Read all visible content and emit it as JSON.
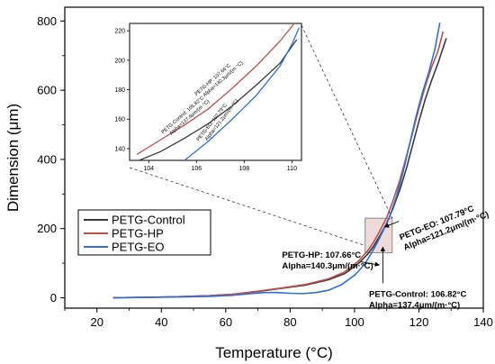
{
  "chart_data": [
    {
      "type": "line",
      "title": "",
      "xlabel": "Temperature (°C)",
      "ylabel": "Dimension (μm)",
      "xlim": [
        10,
        140
      ],
      "ylim": [
        -30,
        840
      ],
      "xticks": [
        20,
        40,
        60,
        80,
        100,
        120,
        140
      ],
      "yticks": [
        0,
        200,
        400,
        600,
        800
      ],
      "grid": false,
      "legend_position": "center-left",
      "series": [
        {
          "name": "PETG-Control",
          "color": "#3a3a3a",
          "points": [
            [
              25,
              0
            ],
            [
              35,
              1
            ],
            [
              45,
              3
            ],
            [
              55,
              6
            ],
            [
              62,
              10
            ],
            [
              70,
              18
            ],
            [
              78,
              28
            ],
            [
              85,
              37
            ],
            [
              92,
              52
            ],
            [
              97,
              70
            ],
            [
              101,
              97
            ],
            [
              104,
              125
            ],
            [
              106,
              150
            ],
            [
              108,
              182
            ],
            [
              110,
              215
            ],
            [
              112,
              260
            ],
            [
              114,
              310
            ],
            [
              116,
              370
            ],
            [
              118,
              440
            ],
            [
              120,
              510
            ],
            [
              122,
              575
            ],
            [
              124,
              630
            ],
            [
              126,
              680
            ],
            [
              128.5,
              750
            ]
          ]
        },
        {
          "name": "PETG-HP",
          "color": "#c0504d",
          "points": [
            [
              25,
              0
            ],
            [
              35,
              1
            ],
            [
              45,
              3
            ],
            [
              55,
              6
            ],
            [
              62,
              10
            ],
            [
              70,
              19
            ],
            [
              78,
              29
            ],
            [
              85,
              39
            ],
            [
              92,
              55
            ],
            [
              97,
              75
            ],
            [
              101,
              104
            ],
            [
              104,
              135
            ],
            [
              106,
              162
            ],
            [
              108,
              196
            ],
            [
              110,
              232
            ],
            [
              112,
              282
            ],
            [
              114,
              338
            ],
            [
              116,
              405
            ],
            [
              118,
              475
            ],
            [
              120,
              548
            ],
            [
              122,
              612
            ],
            [
              124,
              668
            ],
            [
              126,
              715
            ],
            [
              127.5,
              770
            ]
          ]
        },
        {
          "name": "PETG-EO",
          "color": "#2f6fd6",
          "points": [
            [
              25,
              0
            ],
            [
              35,
              1
            ],
            [
              45,
              2
            ],
            [
              55,
              4
            ],
            [
              62,
              7
            ],
            [
              68,
              12
            ],
            [
              72,
              15
            ],
            [
              76,
              15
            ],
            [
              80,
              13
            ],
            [
              84,
              12
            ],
            [
              88,
              15
            ],
            [
              92,
              22
            ],
            [
              96,
              38
            ],
            [
              100,
              65
            ],
            [
              103,
              95
            ],
            [
              105,
              125
            ],
            [
              107,
              158
            ],
            [
              109,
              196
            ],
            [
              111,
              238
            ],
            [
              113,
              292
            ],
            [
              115,
              360
            ],
            [
              117,
              440
            ],
            [
              119,
              520
            ],
            [
              121,
              590
            ],
            [
              123,
              650
            ],
            [
              125,
              720
            ],
            [
              126.5,
              795
            ]
          ]
        }
      ],
      "inset_box": {
        "x": [
          103.3,
          111.7
        ],
        "y": [
          130,
          230
        ]
      },
      "annotations": [
        {
          "text_line1": "PETG-EO: 107.79°C",
          "text_line2": "Alpha=121.2μm/(m·°C)"
        },
        {
          "text_line1": "PETG-HP: 107.66°C",
          "text_line2": "Alpha=140.3μm/(m·°C)"
        },
        {
          "text_line1": "PETG-Control: 106.82°C",
          "text_line2": "Alpha=137.4μm/(m·°C)"
        }
      ]
    },
    {
      "type": "line",
      "title": "",
      "xlabel": "",
      "ylabel": "",
      "xlim": [
        103.2,
        110.4
      ],
      "ylim": [
        132,
        225
      ],
      "xticks": [
        104,
        106,
        108,
        110
      ],
      "yticks": [
        140,
        160,
        180,
        200,
        220
      ],
      "grid": false,
      "series": [
        {
          "name": "PETG-Control",
          "color": "#3a3a3a",
          "points": [
            [
              103.6,
              132
            ],
            [
              104.5,
              138
            ],
            [
              105.5,
              147
            ],
            [
              106.5,
              157
            ],
            [
              107.5,
              169
            ],
            [
              108.5,
              183
            ],
            [
              109.5,
              198
            ],
            [
              110.2,
              214
            ]
          ]
        },
        {
          "name": "PETG-HP",
          "color": "#c0504d",
          "points": [
            [
              103.5,
              136
            ],
            [
              104.5,
              146
            ],
            [
              105.5,
              156
            ],
            [
              106.5,
              167
            ],
            [
              107.5,
              181
            ],
            [
              108.5,
              196
            ],
            [
              109.5,
              213
            ],
            [
              110.1,
              225
            ]
          ]
        },
        {
          "name": "PETG-EO",
          "color": "#2f6fd6",
          "points": [
            [
              105.5,
              132
            ],
            [
              106.5,
              145
            ],
            [
              107.5,
              160
            ],
            [
              108.5,
              176
            ],
            [
              109.5,
              196
            ],
            [
              110.0,
              211
            ],
            [
              110.3,
              222
            ]
          ]
        }
      ],
      "annotations": [
        {
          "text_line1": "PETG-HP: 107.66°C",
          "text_line2": "Alpha=140.3μm/(m·°C)"
        },
        {
          "text_line1": "PETG-Control: 106.82°C",
          "text_line2": "Alpha=137.4μm/(m·°C)"
        },
        {
          "text_line1": "PETG-EO: 107.79°C",
          "text_line2": "Alpha=121.2μm/(m·°C)"
        }
      ]
    }
  ]
}
